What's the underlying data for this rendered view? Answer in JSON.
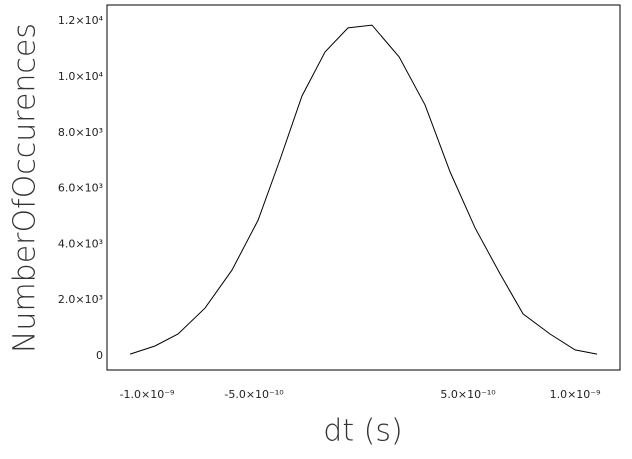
{
  "chart_data": {
    "type": "line",
    "x_label": "dt (s)",
    "y_label": "NumberOfOccurences",
    "x": [
      -1.079e-09,
      -9.63e-10,
      -8.55e-10,
      -7.29e-10,
      -6.03e-10,
      -4.81e-10,
      -3.79e-10,
      -2.76e-10,
      -1.68e-10,
      -6.1e-11,
      5.1e-11,
      1.78e-10,
      2.99e-10,
      4.16e-10,
      5.33e-10,
      6.5e-10,
      7.57e-10,
      8.83e-10,
      1e-09,
      1.103e-09
    ],
    "series": [
      {
        "color": "#000000",
        "values": [
          70,
          360,
          790,
          1720,
          3080,
          4870,
          7030,
          9320,
          10900,
          11760,
          11860,
          10720,
          9000,
          6600,
          4590,
          2940,
          1510,
          790,
          220,
          70
        ]
      }
    ],
    "xlim": [
      -1.187e-09,
      1.21e-09
    ],
    "ylim": [
      -500,
      12580
    ],
    "xticks": [
      {
        "value": -1e-09,
        "label": "-1.0×10⁻⁹"
      },
      {
        "value": -5e-10,
        "label": "-5.0×10⁻¹⁰"
      },
      {
        "value": 5e-10,
        "label": "5.0×10⁻¹⁰"
      },
      {
        "value": 1e-09,
        "label": "1.0×10⁻⁹"
      }
    ],
    "yticks": [
      0,
      {
        "value": 2000,
        "label": "2.0×10³"
      },
      {
        "value": 4000,
        "label": "4.0×10³"
      },
      {
        "value": 6000,
        "label": "6.0×10³"
      },
      {
        "value": 8000,
        "label": "8.0×10³"
      },
      {
        "value": 10000,
        "label": "1.0×10⁴"
      },
      {
        "value": 12000,
        "label": "1.2×10⁴"
      }
    ]
  }
}
